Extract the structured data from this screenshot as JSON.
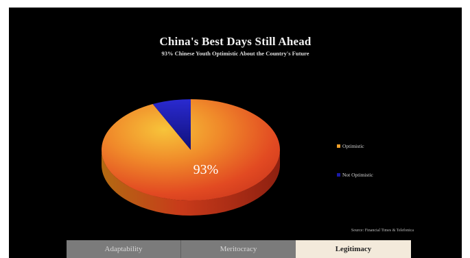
{
  "chart_data": {
    "type": "pie",
    "title": "China's Best Days Still Ahead",
    "subtitle": "93% Chinese Youth Optimistic About the Country's Future",
    "slices": [
      {
        "name": "Optimistic",
        "value": 93,
        "label": "93%",
        "color": "#f0a02a"
      },
      {
        "name": "Not Optimistic",
        "value": 7,
        "label": "",
        "color": "#1a1aa8"
      }
    ],
    "legend_position": "right",
    "source": "Source: Financial Times & Telefonica"
  },
  "tabs": [
    {
      "label": "Adaptability",
      "active": false
    },
    {
      "label": "Meritocracy",
      "active": false
    },
    {
      "label": "Legitimacy",
      "active": true
    }
  ]
}
